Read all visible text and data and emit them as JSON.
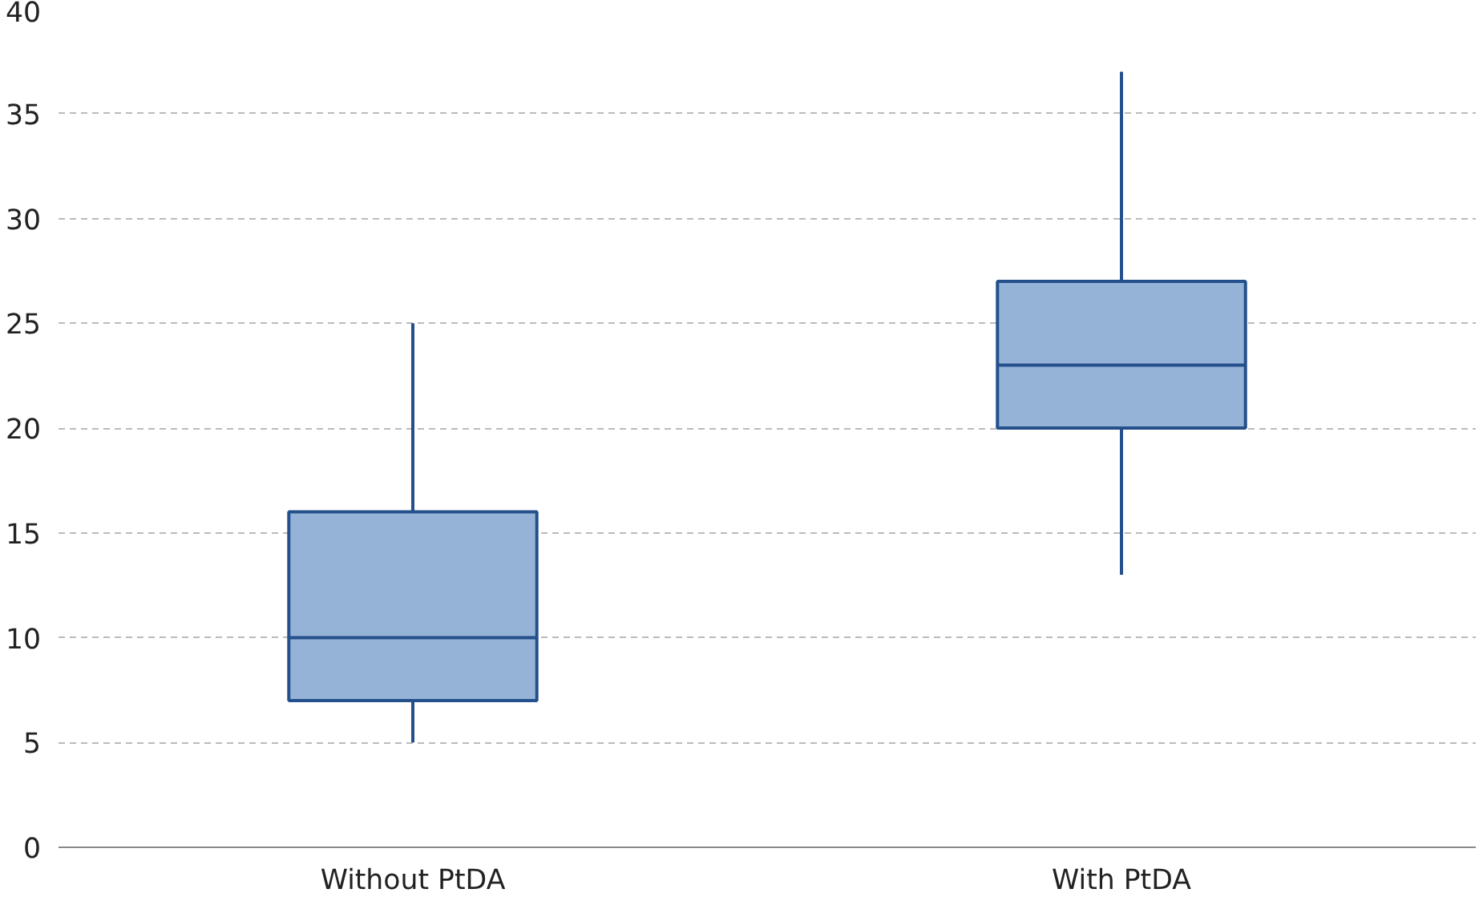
{
  "chart_data": {
    "type": "box",
    "categories": [
      "Without PtDA",
      "With PtDA"
    ],
    "boxes": [
      {
        "low": 5,
        "q1": 7,
        "median": 10,
        "q3": 16,
        "high": 25
      },
      {
        "low": 13,
        "q1": 20,
        "median": 23,
        "q3": 27,
        "high": 37
      }
    ],
    "color": "#95b3d7",
    "ylim": [
      0,
      40
    ],
    "yticks": [
      0,
      5,
      10,
      15,
      20,
      25,
      30,
      35,
      40
    ],
    "grid": "y"
  }
}
